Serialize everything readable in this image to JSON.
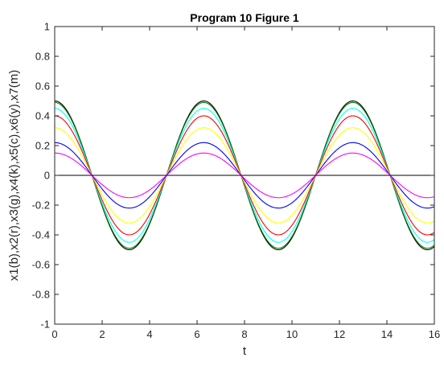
{
  "chart_data": {
    "type": "line",
    "title": "Program 10 Figure  1",
    "xlabel": "t",
    "ylabel": "x1(b),x2(r),x3(g),x4(k),x5(c),x6(y),x7(m)",
    "xlim": [
      0,
      16
    ],
    "ylim": [
      -1,
      1
    ],
    "xticks": [
      "0",
      "2",
      "4",
      "6",
      "8",
      "10",
      "12",
      "14",
      "16"
    ],
    "yticks": [
      "-1",
      "-0.8",
      "-0.6",
      "-0.4",
      "-0.2",
      "0",
      "0.2",
      "0.4",
      "0.6",
      "0.8",
      "1"
    ],
    "grid": false,
    "x_sample_range": [
      0,
      16
    ],
    "baseline": {
      "y": 0,
      "color": "#000000"
    },
    "series": [
      {
        "amplitude": 0.5,
        "frequency": 1.0,
        "color": "#000000"
      },
      {
        "amplitude": 0.49,
        "frequency": 1.0,
        "color": "#008000"
      },
      {
        "amplitude": 0.45,
        "frequency": 1.0,
        "color": "#00ffff"
      },
      {
        "amplitude": 0.4,
        "frequency": 1.0,
        "color": "#ff0000"
      },
      {
        "amplitude": 0.32,
        "frequency": 1.0,
        "color": "#ffff00"
      },
      {
        "amplitude": 0.22,
        "frequency": 1.0,
        "color": "#0000ff"
      },
      {
        "amplitude": 0.15,
        "frequency": 1.0,
        "color": "#ff00ff"
      }
    ]
  }
}
